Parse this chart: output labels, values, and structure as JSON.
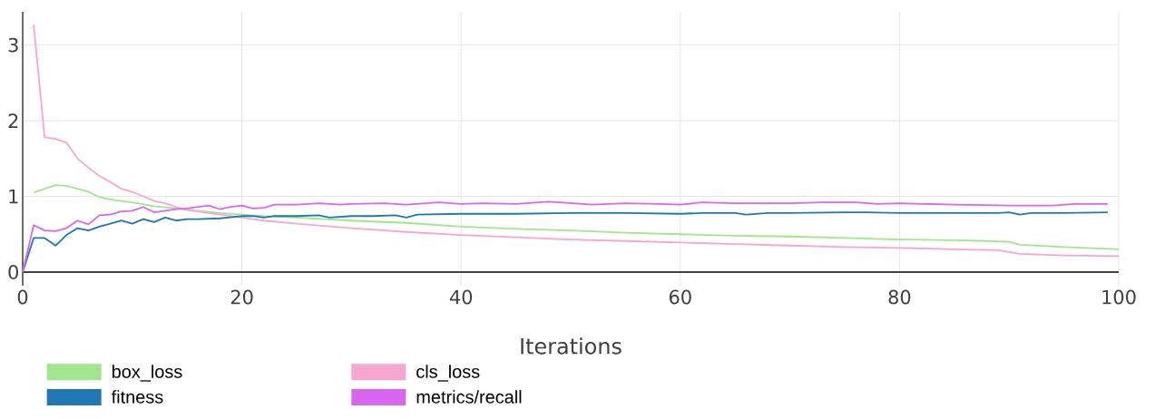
{
  "chart_data": {
    "type": "line",
    "xlabel": "Iterations",
    "xlim": [
      0,
      100
    ],
    "ylim": [
      -0.18,
      3.44
    ],
    "xticks": [
      0,
      20,
      40,
      60,
      80,
      100
    ],
    "yticks": [
      0,
      1,
      2,
      3
    ],
    "grid": true,
    "legend": "bottom",
    "series": [
      {
        "name": "box_loss",
        "color": "#a1e58f",
        "x": [
          1,
          2,
          3,
          4,
          5,
          6,
          7,
          8,
          9,
          10,
          12,
          14,
          16,
          18,
          20,
          22,
          25,
          30,
          35,
          40,
          45,
          50,
          55,
          60,
          65,
          70,
          75,
          80,
          85,
          88,
          90,
          91,
          95,
          100
        ],
        "values": [
          1.05,
          1.1,
          1.15,
          1.14,
          1.1,
          1.06,
          0.99,
          0.96,
          0.94,
          0.92,
          0.87,
          0.84,
          0.81,
          0.78,
          0.76,
          0.74,
          0.72,
          0.68,
          0.65,
          0.6,
          0.57,
          0.55,
          0.52,
          0.5,
          0.48,
          0.47,
          0.45,
          0.43,
          0.42,
          0.41,
          0.4,
          0.36,
          0.33,
          0.3
        ]
      },
      {
        "name": "cls_loss",
        "color": "#f7a6cf",
        "x": [
          1,
          2,
          3,
          4,
          5,
          6,
          7,
          8,
          9,
          10,
          11,
          12,
          13,
          14,
          15,
          16,
          17,
          18,
          20,
          22,
          25,
          30,
          35,
          40,
          45,
          50,
          55,
          60,
          65,
          70,
          75,
          80,
          85,
          89,
          91,
          95,
          100
        ],
        "values": [
          3.27,
          1.78,
          1.76,
          1.71,
          1.5,
          1.38,
          1.27,
          1.19,
          1.1,
          1.06,
          1.0,
          0.94,
          0.91,
          0.86,
          0.82,
          0.8,
          0.78,
          0.76,
          0.72,
          0.68,
          0.64,
          0.58,
          0.53,
          0.49,
          0.46,
          0.43,
          0.41,
          0.39,
          0.37,
          0.35,
          0.33,
          0.32,
          0.3,
          0.29,
          0.24,
          0.22,
          0.21
        ]
      },
      {
        "name": "fitness",
        "color": "#1f77b4",
        "x": [
          0,
          1,
          2,
          3,
          4,
          5,
          6,
          7,
          8,
          9,
          10,
          11,
          12,
          13,
          14,
          15,
          16,
          18,
          20,
          21,
          22,
          23,
          25,
          27,
          28,
          30,
          32,
          34,
          35,
          36,
          40,
          45,
          50,
          55,
          60,
          62,
          65,
          66,
          68,
          70,
          75,
          77,
          80,
          85,
          89,
          90,
          91,
          92,
          95,
          99
        ],
        "values": [
          0,
          0.45,
          0.45,
          0.35,
          0.49,
          0.58,
          0.55,
          0.6,
          0.64,
          0.68,
          0.64,
          0.7,
          0.66,
          0.72,
          0.68,
          0.7,
          0.7,
          0.71,
          0.74,
          0.74,
          0.72,
          0.74,
          0.74,
          0.75,
          0.72,
          0.74,
          0.74,
          0.75,
          0.72,
          0.76,
          0.77,
          0.77,
          0.78,
          0.78,
          0.77,
          0.78,
          0.78,
          0.76,
          0.78,
          0.78,
          0.79,
          0.79,
          0.78,
          0.78,
          0.78,
          0.79,
          0.76,
          0.78,
          0.78,
          0.79
        ]
      },
      {
        "name": "metrics/recall",
        "color": "#d966f0",
        "x": [
          0,
          1,
          2,
          3,
          4,
          5,
          6,
          7,
          8,
          9,
          10,
          11,
          12,
          13,
          14,
          15,
          16,
          17,
          18,
          19,
          20,
          21,
          22,
          23,
          25,
          27,
          29,
          30,
          33,
          35,
          38,
          40,
          42,
          45,
          48,
          50,
          52,
          55,
          58,
          60,
          62,
          65,
          68,
          70,
          73,
          76,
          78,
          80,
          85,
          90,
          94,
          96,
          99
        ],
        "values": [
          0,
          0.62,
          0.55,
          0.54,
          0.58,
          0.68,
          0.63,
          0.75,
          0.76,
          0.8,
          0.81,
          0.86,
          0.79,
          0.81,
          0.83,
          0.84,
          0.86,
          0.88,
          0.83,
          0.86,
          0.88,
          0.84,
          0.85,
          0.89,
          0.89,
          0.91,
          0.89,
          0.9,
          0.91,
          0.89,
          0.92,
          0.9,
          0.91,
          0.9,
          0.93,
          0.91,
          0.89,
          0.91,
          0.9,
          0.89,
          0.92,
          0.91,
          0.91,
          0.91,
          0.92,
          0.92,
          0.9,
          0.91,
          0.89,
          0.88,
          0.88,
          0.9,
          0.9
        ]
      }
    ]
  }
}
